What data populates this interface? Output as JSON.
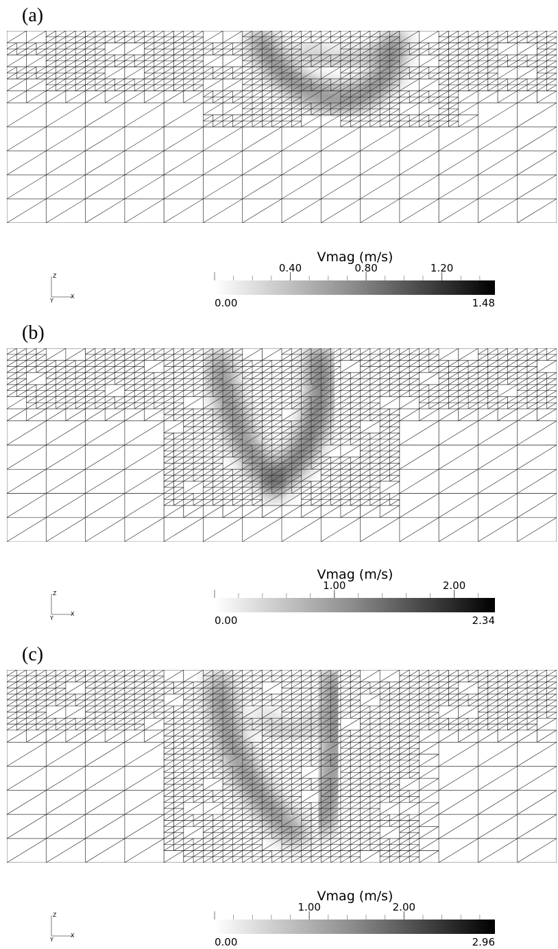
{
  "panels": [
    {
      "label": "(a)",
      "axes": {
        "z": "Z",
        "y": "Y",
        "x": "X"
      },
      "colorbar": {
        "title": "Vmag (m/s)",
        "range": [
          {
            "value": 0,
            "label": "0.00"
          },
          {
            "value": 1.48,
            "label": "1.48"
          }
        ],
        "ticks": [
          {
            "value": 0.4,
            "label": "0.40"
          },
          {
            "value": 0.8,
            "label": "0.80"
          },
          {
            "value": 1.2,
            "label": "1.20"
          }
        ]
      }
    },
    {
      "label": "(b)",
      "axes": {
        "z": "Z",
        "y": "Y",
        "x": "X"
      },
      "colorbar": {
        "title": "Vmag (m/s)",
        "range": [
          {
            "value": 0,
            "label": "0.00"
          },
          {
            "value": 2.34,
            "label": "2.34"
          }
        ],
        "ticks": [
          {
            "value": 1,
            "label": "1.00"
          },
          {
            "value": 2,
            "label": "2.00"
          }
        ]
      }
    },
    {
      "label": "(c)",
      "axes": {
        "z": "Z",
        "y": "Y",
        "x": "X"
      },
      "colorbar": {
        "title": "Vmag (m/s)",
        "range": [
          {
            "value": 0,
            "label": "0.00"
          },
          {
            "value": 2.96,
            "label": "2.96"
          }
        ],
        "ticks": [
          {
            "value": 1,
            "label": "1.00"
          },
          {
            "value": 2,
            "label": "2.00"
          }
        ]
      }
    }
  ]
}
